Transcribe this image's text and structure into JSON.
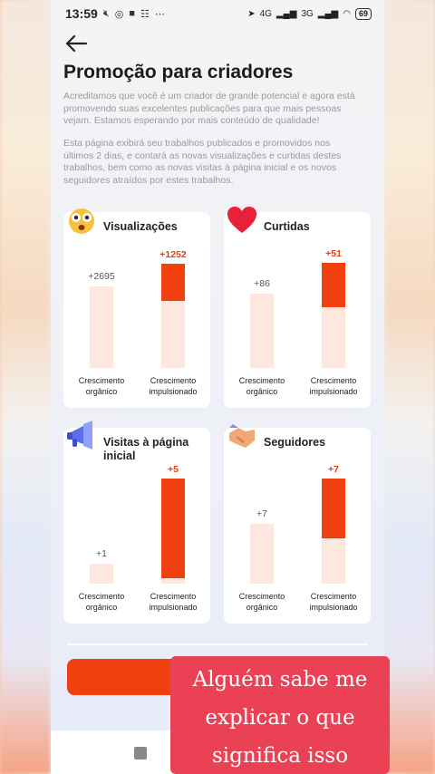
{
  "status": {
    "time": "13:59",
    "battery": "69",
    "network_left": "4G",
    "network_right": "3G"
  },
  "page": {
    "title": "Promoção para criadores",
    "paragraph1": "Acreditamos que você é um criador de grande potencial e agora está promovendo suas excelentes publicações para que mais pessoas vejam. Estamos esperando por mais conteúdo de qualidade!",
    "paragraph2": "Esta página exibirá seu trabalhos publicados e promovidos nos últimos 2 dias, e contará as novas visualizações e curtidas destes trabalhos, bem como as novas visitas à página inicial e os novos seguidores atraídos por estes trabalhos."
  },
  "cards": [
    {
      "title": "Visualizações",
      "icon": "shocked-face-icon",
      "organic_label": "Crescimento orgânico",
      "boosted_label": "Crescimento impulsionado",
      "organic_value": "+2695",
      "boosted_value": "+1252"
    },
    {
      "title": "Curtidas",
      "icon": "heart-icon",
      "organic_label": "Crescimento orgânico",
      "boosted_label": "Crescimento impulsionado",
      "organic_value": "+86",
      "boosted_value": "+51"
    },
    {
      "title": "Visitas à página inicial",
      "icon": "megaphone-icon",
      "organic_label": "Crescimento orgânico",
      "boosted_label": "Crescimento impulsionado",
      "organic_value": "+1",
      "boosted_value": "+5"
    },
    {
      "title": "Seguidores",
      "icon": "handshake-icon",
      "organic_label": "Crescimento orgânico",
      "boosted_label": "Crescimento impulsionado",
      "organic_value": "+7",
      "boosted_value": "+7"
    }
  ],
  "overlay": {
    "line1": "Alguém sabe me",
    "line2": "explicar o que",
    "line3": "significa isso"
  },
  "colors": {
    "accent": "#f0400f",
    "pale_bar": "#fde7df",
    "overlay_bg": "#ea4154"
  }
}
